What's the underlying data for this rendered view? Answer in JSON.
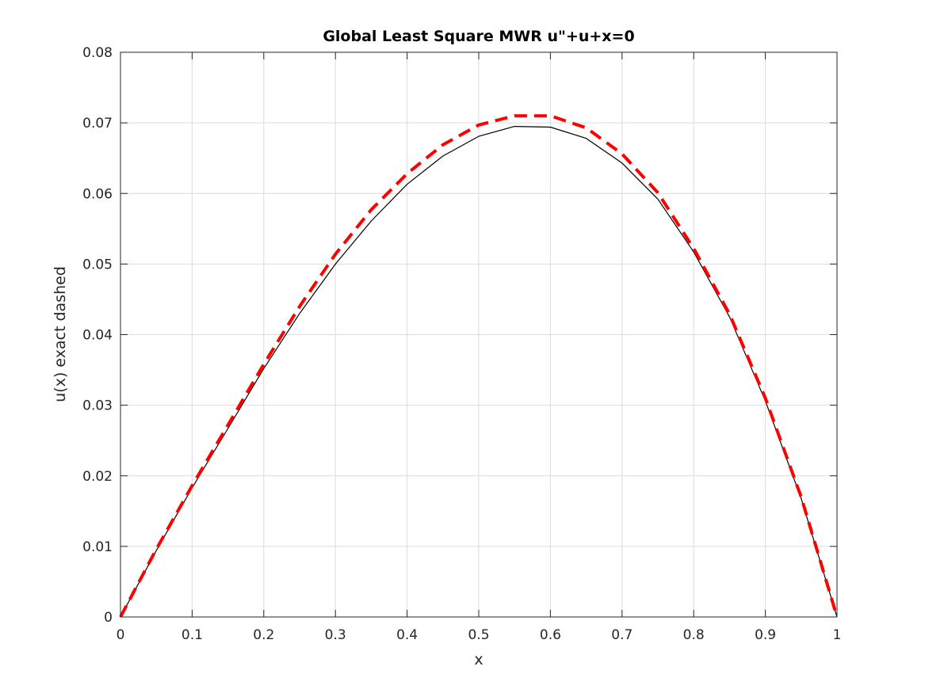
{
  "chart_data": {
    "type": "line",
    "title": "Global Least Square MWR u\"+u+x=0",
    "xlabel": "x",
    "ylabel": "u(x) exact dashed",
    "xlim": [
      0,
      1
    ],
    "ylim": [
      0,
      0.08
    ],
    "xticks": [
      0,
      0.1,
      0.2,
      0.3,
      0.4,
      0.5,
      0.6,
      0.7,
      0.8,
      0.9,
      1
    ],
    "xtick_labels": [
      "0",
      "0.1",
      "0.2",
      "0.3",
      "0.4",
      "0.5",
      "0.6",
      "0.7",
      "0.8",
      "0.9",
      "1"
    ],
    "yticks": [
      0,
      0.01,
      0.02,
      0.03,
      0.04,
      0.05,
      0.06,
      0.07,
      0.08
    ],
    "ytick_labels": [
      "0",
      "0.01",
      "0.02",
      "0.03",
      "0.04",
      "0.05",
      "0.06",
      "0.07",
      "0.08"
    ],
    "grid": true,
    "x": [
      0,
      0.05,
      0.1,
      0.15,
      0.2,
      0.25,
      0.3,
      0.35,
      0.4,
      0.45,
      0.5,
      0.55,
      0.6,
      0.65,
      0.7,
      0.75,
      0.8,
      0.85,
      0.9,
      0.95,
      1
    ],
    "series": [
      {
        "style": "solid",
        "color": "#000000",
        "values": [
          0,
          0.0094,
          0.0183,
          0.0267,
          0.0352,
          0.043,
          0.05,
          0.0561,
          0.0613,
          0.0653,
          0.0681,
          0.0695,
          0.0694,
          0.0678,
          0.0643,
          0.0592,
          0.0517,
          0.0425,
          0.0306,
          0.0168,
          0
        ]
      },
      {
        "style": "dashed",
        "color": "#ff0000",
        "values": [
          0,
          0.0096,
          0.0186,
          0.0272,
          0.0358,
          0.044,
          0.0514,
          0.0577,
          0.0628,
          0.0669,
          0.0697,
          0.071,
          0.071,
          0.0693,
          0.0656,
          0.0601,
          0.0522,
          0.0429,
          0.031,
          0.017,
          0
        ]
      }
    ]
  }
}
